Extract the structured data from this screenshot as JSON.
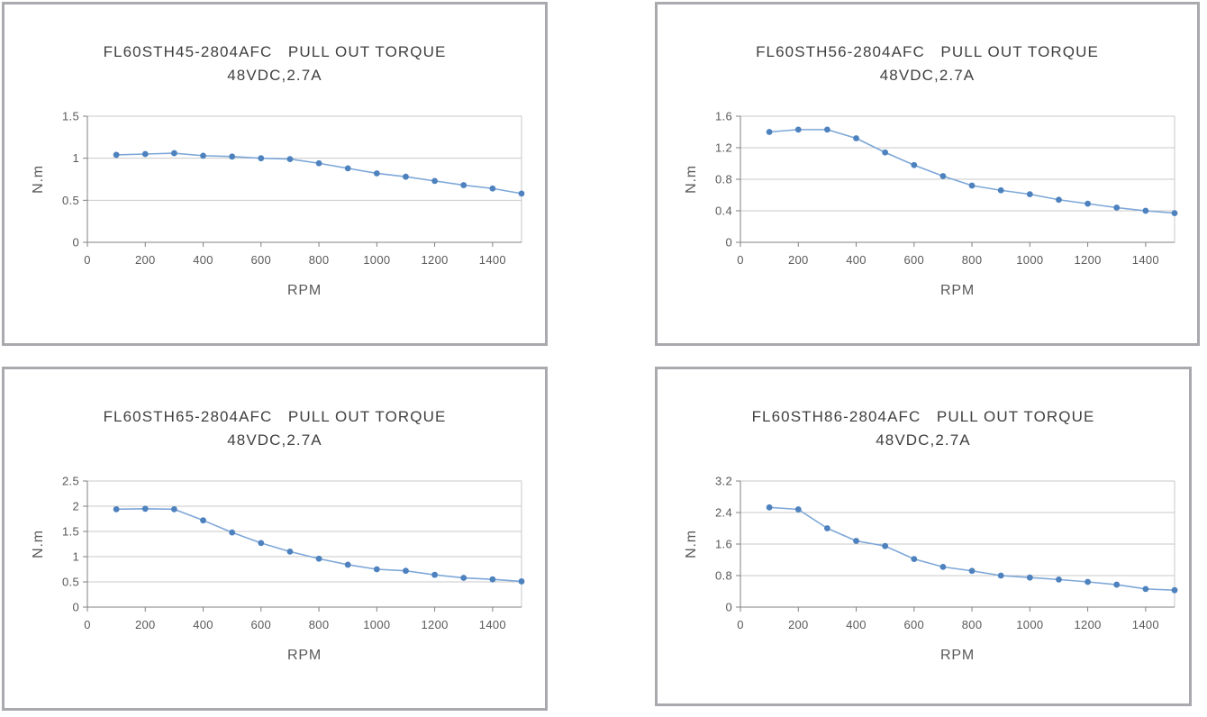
{
  "style": {
    "background": "#ffffff",
    "panel_border_color": "#a9a9ae",
    "grid_color": "#c9c9c9",
    "axis_color": "#808080",
    "tick_label_color": "#595959",
    "title_color": "#3f3f3f",
    "line_color": "#7da7d8",
    "marker_color": "#4e82be"
  },
  "chart_data": [
    {
      "type": "line",
      "title": "FL60STH45-2804AFC   PULL OUT TORQUE",
      "subtitle": "48VDC,2.7A",
      "xlabel": "RPM",
      "ylabel": "N.m",
      "xlim": [
        0,
        1500
      ],
      "ylim": [
        0,
        1.5
      ],
      "xticks": [
        0,
        200,
        400,
        600,
        800,
        1000,
        1200,
        1400
      ],
      "yticks": [
        0,
        0.5,
        1,
        1.5
      ],
      "grid": true,
      "legend": false,
      "x": [
        100,
        200,
        300,
        400,
        500,
        600,
        700,
        800,
        900,
        1000,
        1100,
        1200,
        1300,
        1400,
        1500
      ],
      "values": [
        1.04,
        1.05,
        1.06,
        1.03,
        1.02,
        1.0,
        0.99,
        0.94,
        0.88,
        0.82,
        0.78,
        0.73,
        0.68,
        0.64,
        0.58
      ]
    },
    {
      "type": "line",
      "title": "FL60STH56-2804AFC   PULL OUT TORQUE",
      "subtitle": "48VDC,2.7A",
      "xlabel": "RPM",
      "ylabel": "N.m",
      "xlim": [
        0,
        1500
      ],
      "ylim": [
        0,
        1.6
      ],
      "xticks": [
        0,
        200,
        400,
        600,
        800,
        1000,
        1200,
        1400
      ],
      "yticks": [
        0,
        0.4,
        0.8,
        1.2,
        1.6
      ],
      "grid": true,
      "legend": false,
      "x": [
        100,
        200,
        300,
        400,
        500,
        600,
        700,
        800,
        900,
        1000,
        1100,
        1200,
        1300,
        1400,
        1500
      ],
      "values": [
        1.4,
        1.43,
        1.43,
        1.32,
        1.14,
        0.98,
        0.84,
        0.72,
        0.66,
        0.61,
        0.54,
        0.49,
        0.44,
        0.4,
        0.37
      ]
    },
    {
      "type": "line",
      "title": "FL60STH65-2804AFC   PULL OUT TORQUE",
      "subtitle": "48VDC,2.7A",
      "xlabel": "RPM",
      "ylabel": "N.m",
      "xlim": [
        0,
        1500
      ],
      "ylim": [
        0,
        2.5
      ],
      "xticks": [
        0,
        200,
        400,
        600,
        800,
        1000,
        1200,
        1400
      ],
      "yticks": [
        0,
        0.5,
        1,
        1.5,
        2,
        2.5
      ],
      "grid": true,
      "legend": false,
      "x": [
        100,
        200,
        300,
        400,
        500,
        600,
        700,
        800,
        900,
        1000,
        1100,
        1200,
        1300,
        1400,
        1500
      ],
      "values": [
        1.94,
        1.95,
        1.94,
        1.72,
        1.48,
        1.27,
        1.1,
        0.96,
        0.84,
        0.75,
        0.72,
        0.64,
        0.58,
        0.55,
        0.51
      ]
    },
    {
      "type": "line",
      "title": "FL60STH86-2804AFC   PULL OUT TORQUE",
      "subtitle": "48VDC,2.7A",
      "xlabel": "RPM",
      "ylabel": "N.m",
      "xlim": [
        0,
        1500
      ],
      "ylim": [
        0,
        3.2
      ],
      "xticks": [
        0,
        200,
        400,
        600,
        800,
        1000,
        1200,
        1400
      ],
      "yticks": [
        0,
        0.8,
        1.6,
        2.4,
        3.2
      ],
      "grid": true,
      "legend": false,
      "x": [
        100,
        200,
        300,
        400,
        500,
        600,
        700,
        800,
        900,
        1000,
        1100,
        1200,
        1300,
        1400,
        1500
      ],
      "values": [
        2.53,
        2.48,
        2.0,
        1.68,
        1.55,
        1.22,
        1.02,
        0.92,
        0.8,
        0.75,
        0.7,
        0.64,
        0.57,
        0.46,
        0.43
      ]
    }
  ]
}
